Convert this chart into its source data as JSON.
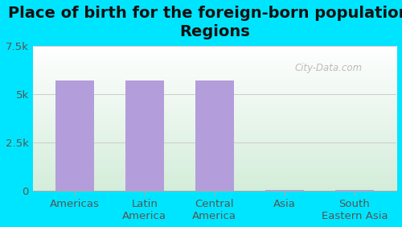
{
  "title": "Place of birth for the foreign-born population -\nRegions",
  "categories": [
    "Americas",
    "Latin\nAmerica",
    "Central\nAmerica",
    "Asia",
    "South\nEastern Asia"
  ],
  "values": [
    5700,
    5700,
    5700,
    30,
    30
  ],
  "bar_color": "#b39ddb",
  "ylim": [
    0,
    7500
  ],
  "yticks": [
    0,
    2500,
    5000,
    7500
  ],
  "ytick_labels": [
    "0",
    "2.5k",
    "5k",
    "7.5k"
  ],
  "background_color": "#00e5ff",
  "plot_bg_top": "#ffffff",
  "plot_bg_bottom": "#d4edda",
  "watermark": "City-Data.com",
  "title_fontsize": 14,
  "tick_fontsize": 9.5
}
